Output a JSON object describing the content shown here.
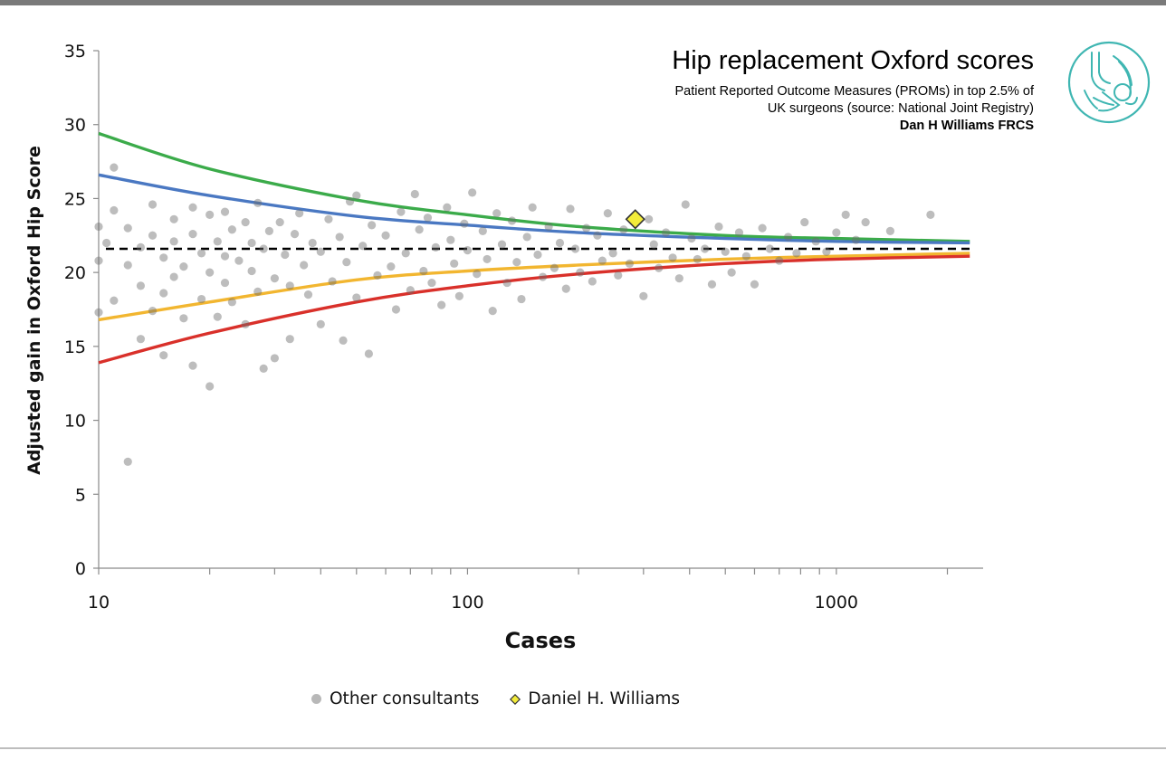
{
  "chart_data": {
    "type": "scatter",
    "title": "Hip replacement Oxford scores",
    "subtitle_lines": [
      "Patient Reported Outcome Measures (PROMs) in top 2.5% of",
      "UK surgeons (source: National Joint Registry)"
    ],
    "author": "Dan H Williams FRCS",
    "xlabel": "Cases",
    "ylabel": "Adjusted gain in Oxford Hip Score",
    "x_scale": "log",
    "xlim": [
      10,
      2500
    ],
    "ylim": [
      0,
      35
    ],
    "x_ticks": [
      10,
      100,
      1000
    ],
    "x_tick_labels": [
      "10",
      "100",
      "1000"
    ],
    "y_ticks": [
      0,
      5,
      10,
      15,
      20,
      25,
      30,
      35
    ],
    "y_tick_labels": [
      "0",
      "5",
      "10",
      "15",
      "20",
      "25",
      "30",
      "35"
    ],
    "grid": false,
    "legend_position": "bottom",
    "mean_line": {
      "y": 21.6,
      "style": "dashed",
      "color": "#000000"
    },
    "funnel_limits": [
      {
        "color": "#3bab4a",
        "side": "upper-outer",
        "points": [
          [
            10,
            29.4
          ],
          [
            20,
            27.0
          ],
          [
            50,
            24.9
          ],
          [
            100,
            23.9
          ],
          [
            200,
            23.1
          ],
          [
            500,
            22.5
          ],
          [
            1000,
            22.3
          ],
          [
            2300,
            22.1
          ]
        ]
      },
      {
        "color": "#4a78c2",
        "side": "upper-inner",
        "points": [
          [
            10,
            26.6
          ],
          [
            20,
            25.2
          ],
          [
            50,
            23.8
          ],
          [
            100,
            23.2
          ],
          [
            200,
            22.7
          ],
          [
            500,
            22.3
          ],
          [
            1000,
            22.1
          ],
          [
            2300,
            22.0
          ]
        ]
      },
      {
        "color": "#f2b630",
        "side": "lower-inner",
        "points": [
          [
            10,
            16.8
          ],
          [
            20,
            18.0
          ],
          [
            50,
            19.5
          ],
          [
            100,
            20.1
          ],
          [
            200,
            20.5
          ],
          [
            500,
            20.9
          ],
          [
            1000,
            21.1
          ],
          [
            2300,
            21.3
          ]
        ]
      },
      {
        "color": "#d9302a",
        "side": "lower-outer",
        "points": [
          [
            10,
            13.9
          ],
          [
            20,
            15.9
          ],
          [
            50,
            18.0
          ],
          [
            100,
            19.1
          ],
          [
            200,
            19.9
          ],
          [
            500,
            20.6
          ],
          [
            1000,
            20.9
          ],
          [
            2300,
            21.1
          ]
        ]
      }
    ],
    "series": [
      {
        "name": "Other consultants",
        "color": "#a8a8a8",
        "points": [
          [
            10,
            23.1
          ],
          [
            10,
            17.3
          ],
          [
            10,
            20.8
          ],
          [
            10.5,
            22.0
          ],
          [
            11,
            27.1
          ],
          [
            11,
            24.2
          ],
          [
            11,
            18.1
          ],
          [
            12,
            7.2
          ],
          [
            12,
            23.0
          ],
          [
            12,
            20.5
          ],
          [
            13,
            15.5
          ],
          [
            13,
            21.7
          ],
          [
            13,
            19.1
          ],
          [
            14,
            24.6
          ],
          [
            14,
            22.5
          ],
          [
            14,
            17.4
          ],
          [
            15,
            21.0
          ],
          [
            15,
            18.6
          ],
          [
            15,
            14.4
          ],
          [
            16,
            23.6
          ],
          [
            16,
            22.1
          ],
          [
            16,
            19.7
          ],
          [
            17,
            20.4
          ],
          [
            17,
            16.9
          ],
          [
            18,
            24.4
          ],
          [
            18,
            22.6
          ],
          [
            18,
            13.7
          ],
          [
            19,
            21.3
          ],
          [
            19,
            18.2
          ],
          [
            20,
            12.3
          ],
          [
            20,
            23.9
          ],
          [
            20,
            20.0
          ],
          [
            21,
            22.1
          ],
          [
            21,
            17.0
          ],
          [
            22,
            24.1
          ],
          [
            22,
            21.1
          ],
          [
            22,
            19.3
          ],
          [
            23,
            18.0
          ],
          [
            23,
            22.9
          ],
          [
            24,
            20.8
          ],
          [
            25,
            23.4
          ],
          [
            25,
            16.5
          ],
          [
            26,
            22.0
          ],
          [
            26,
            20.1
          ],
          [
            27,
            24.7
          ],
          [
            27,
            18.7
          ],
          [
            28,
            13.5
          ],
          [
            28,
            21.6
          ],
          [
            29,
            22.8
          ],
          [
            30,
            19.6
          ],
          [
            30,
            14.2
          ],
          [
            31,
            23.4
          ],
          [
            32,
            21.2
          ],
          [
            33,
            15.5
          ],
          [
            33,
            19.1
          ],
          [
            34,
            22.6
          ],
          [
            35,
            24.0
          ],
          [
            36,
            20.5
          ],
          [
            37,
            18.5
          ],
          [
            38,
            22.0
          ],
          [
            40,
            21.4
          ],
          [
            40,
            16.5
          ],
          [
            42,
            23.6
          ],
          [
            43,
            19.4
          ],
          [
            45,
            22.4
          ],
          [
            46,
            15.4
          ],
          [
            47,
            20.7
          ],
          [
            48,
            24.8
          ],
          [
            50,
            25.2
          ],
          [
            50,
            18.3
          ],
          [
            52,
            21.8
          ],
          [
            54,
            14.5
          ],
          [
            55,
            23.2
          ],
          [
            57,
            19.8
          ],
          [
            60,
            22.5
          ],
          [
            62,
            20.4
          ],
          [
            64,
            17.5
          ],
          [
            66,
            24.1
          ],
          [
            68,
            21.3
          ],
          [
            70,
            18.8
          ],
          [
            72,
            25.3
          ],
          [
            74,
            22.9
          ],
          [
            76,
            20.1
          ],
          [
            78,
            23.7
          ],
          [
            80,
            19.3
          ],
          [
            82,
            21.7
          ],
          [
            85,
            17.8
          ],
          [
            88,
            24.4
          ],
          [
            90,
            22.2
          ],
          [
            92,
            20.6
          ],
          [
            95,
            18.4
          ],
          [
            98,
            23.3
          ],
          [
            100,
            21.5
          ],
          [
            103,
            25.4
          ],
          [
            106,
            19.9
          ],
          [
            110,
            22.8
          ],
          [
            113,
            20.9
          ],
          [
            117,
            17.4
          ],
          [
            120,
            24.0
          ],
          [
            124,
            21.9
          ],
          [
            128,
            19.3
          ],
          [
            132,
            23.5
          ],
          [
            136,
            20.7
          ],
          [
            140,
            18.2
          ],
          [
            145,
            22.4
          ],
          [
            150,
            24.4
          ],
          [
            155,
            21.2
          ],
          [
            160,
            19.7
          ],
          [
            166,
            23.1
          ],
          [
            172,
            20.3
          ],
          [
            178,
            22.0
          ],
          [
            185,
            18.9
          ],
          [
            190,
            24.3
          ],
          [
            196,
            21.6
          ],
          [
            202,
            20.0
          ],
          [
            210,
            23.0
          ],
          [
            218,
            19.4
          ],
          [
            225,
            22.5
          ],
          [
            232,
            20.8
          ],
          [
            240,
            24.0
          ],
          [
            248,
            21.3
          ],
          [
            256,
            19.8
          ],
          [
            265,
            22.9
          ],
          [
            275,
            20.6
          ],
          [
            300,
            18.4
          ],
          [
            310,
            23.6
          ],
          [
            320,
            21.9
          ],
          [
            330,
            20.3
          ],
          [
            345,
            22.7
          ],
          [
            360,
            21.0
          ],
          [
            375,
            19.6
          ],
          [
            390,
            24.6
          ],
          [
            405,
            22.3
          ],
          [
            420,
            20.9
          ],
          [
            440,
            21.6
          ],
          [
            460,
            19.2
          ],
          [
            480,
            23.1
          ],
          [
            500,
            21.4
          ],
          [
            520,
            20.0
          ],
          [
            545,
            22.7
          ],
          [
            570,
            21.1
          ],
          [
            600,
            19.2
          ],
          [
            630,
            23.0
          ],
          [
            660,
            21.6
          ],
          [
            700,
            20.8
          ],
          [
            740,
            22.4
          ],
          [
            780,
            21.3
          ],
          [
            820,
            23.4
          ],
          [
            880,
            22.1
          ],
          [
            940,
            21.4
          ],
          [
            1000,
            22.7
          ],
          [
            1060,
            23.9
          ],
          [
            1130,
            22.2
          ],
          [
            1200,
            23.4
          ],
          [
            1400,
            22.8
          ],
          [
            1800,
            23.9
          ]
        ]
      },
      {
        "name": "Daniel H. Williams",
        "color": "#f3ec3a",
        "points": [
          [
            285,
            23.6
          ]
        ]
      }
    ]
  }
}
